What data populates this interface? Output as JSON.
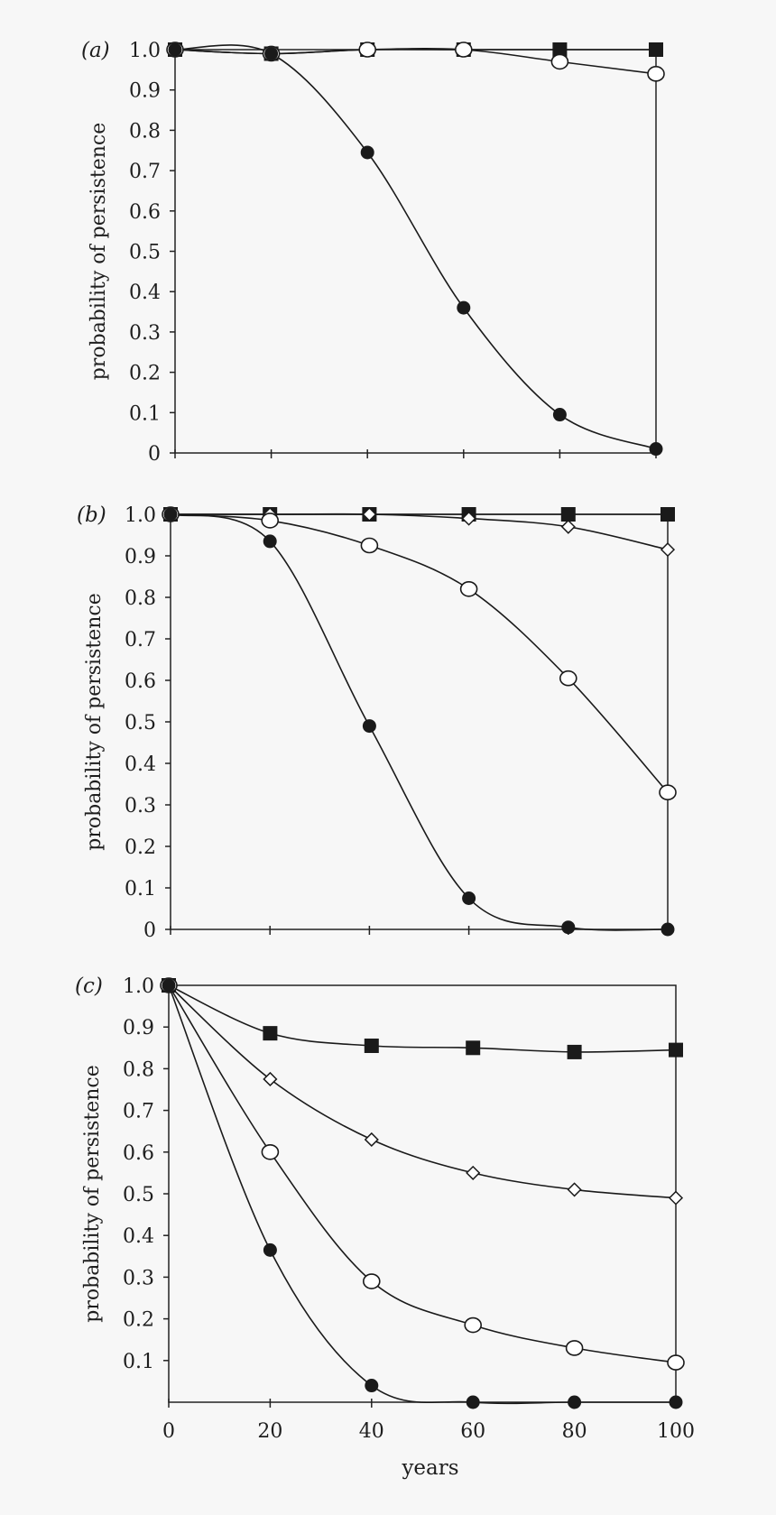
{
  "figure": {
    "xlabel": "years"
  },
  "chart_data": [
    {
      "type": "line",
      "panel_label": "(a)",
      "ylabel": "probability of persistence",
      "xlim": [
        0,
        100
      ],
      "ylim": [
        0,
        1.0
      ],
      "y_ticks": [
        "0",
        "0.1",
        "0.2",
        "0.3",
        "0.4",
        "0.5",
        "0.6",
        "0.7",
        "0.8",
        "0.9",
        "1.0"
      ],
      "x_ticks": [
        0,
        20,
        40,
        60,
        80,
        100
      ],
      "series": [
        {
          "name": "filled squares",
          "marker": "square-filled",
          "x": [
            0,
            20,
            40,
            60,
            80,
            100
          ],
          "y": [
            1.0,
            0.99,
            1.0,
            1.0,
            1.0,
            1.0
          ]
        },
        {
          "name": "open circles",
          "marker": "circle-open",
          "x": [
            0,
            20,
            40,
            60,
            80,
            100
          ],
          "y": [
            1.0,
            0.99,
            1.0,
            1.0,
            0.97,
            0.94
          ]
        },
        {
          "name": "filled circles",
          "marker": "circle-filled",
          "x": [
            0,
            20,
            40,
            60,
            80,
            100
          ],
          "y": [
            1.0,
            0.99,
            0.745,
            0.36,
            0.095,
            0.01
          ]
        }
      ]
    },
    {
      "type": "line",
      "panel_label": "(b)",
      "ylabel": "probability of persistence",
      "xlim": [
        0,
        100
      ],
      "ylim": [
        0,
        1.0
      ],
      "y_ticks": [
        "0",
        "0.1",
        "0.2",
        "0.3",
        "0.4",
        "0.5",
        "0.6",
        "0.7",
        "0.8",
        "0.9",
        "1.0"
      ],
      "x_ticks": [
        0,
        20,
        40,
        60,
        80,
        100
      ],
      "series": [
        {
          "name": "filled squares",
          "marker": "square-filled",
          "x": [
            0,
            20,
            40,
            60,
            80,
            100
          ],
          "y": [
            1.0,
            1.0,
            1.0,
            1.0,
            1.0,
            1.0
          ]
        },
        {
          "name": "open diamonds",
          "marker": "diamond-open",
          "x": [
            0,
            20,
            40,
            60,
            80,
            100
          ],
          "y": [
            1.0,
            1.0,
            1.0,
            0.99,
            0.97,
            0.915
          ]
        },
        {
          "name": "open circles",
          "marker": "circle-open",
          "x": [
            0,
            20,
            40,
            60,
            80,
            100
          ],
          "y": [
            1.0,
            0.985,
            0.925,
            0.82,
            0.605,
            0.33
          ]
        },
        {
          "name": "filled circles",
          "marker": "circle-filled",
          "x": [
            0,
            20,
            40,
            60,
            80,
            100
          ],
          "y": [
            1.0,
            0.935,
            0.49,
            0.075,
            0.005,
            0.0
          ]
        }
      ]
    },
    {
      "type": "line",
      "panel_label": "(c)",
      "ylabel": "probability of persistence",
      "xlim": [
        0,
        100
      ],
      "ylim": [
        0,
        1.0
      ],
      "y_ticks": [
        "0.1",
        "0.2",
        "0.3",
        "0.4",
        "0.5",
        "0.6",
        "0.7",
        "0.8",
        "0.9",
        "1.0"
      ],
      "x_ticks": [
        0,
        20,
        40,
        60,
        80,
        100
      ],
      "x_tick_labels": [
        "0",
        "20",
        "40",
        "60",
        "80",
        "100"
      ],
      "series": [
        {
          "name": "filled squares",
          "marker": "square-filled",
          "x": [
            0,
            20,
            40,
            60,
            80,
            100
          ],
          "y": [
            1.0,
            0.885,
            0.855,
            0.85,
            0.84,
            0.845
          ]
        },
        {
          "name": "open diamonds",
          "marker": "diamond-open",
          "x": [
            0,
            20,
            40,
            60,
            80,
            100
          ],
          "y": [
            1.0,
            0.775,
            0.63,
            0.55,
            0.51,
            0.49
          ]
        },
        {
          "name": "open circles",
          "marker": "circle-open",
          "x": [
            0,
            20,
            40,
            60,
            80,
            100
          ],
          "y": [
            1.0,
            0.6,
            0.29,
            0.185,
            0.13,
            0.095
          ]
        },
        {
          "name": "filled circles",
          "marker": "circle-filled",
          "x": [
            0,
            20,
            40,
            60,
            80,
            100
          ],
          "y": [
            1.0,
            0.365,
            0.04,
            0.0,
            0.0,
            0.0
          ]
        }
      ]
    }
  ]
}
